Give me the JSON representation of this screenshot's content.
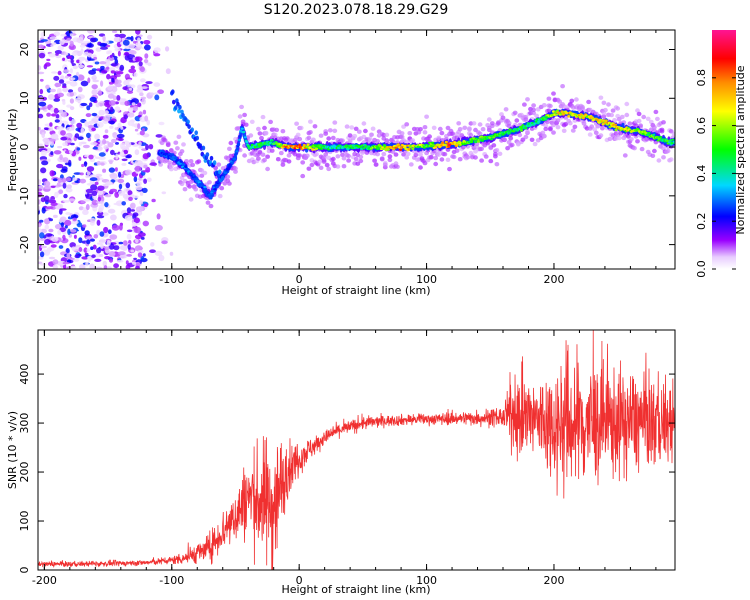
{
  "title": "S120.2023.078.18.29.G29",
  "chart_data": [
    {
      "type": "heatmap",
      "xlabel": "Height of straight line (km)",
      "ylabel": "Frequency (Hz)",
      "xlim": [
        -205,
        295
      ],
      "ylim": [
        -25,
        24
      ],
      "xticks": [
        -200,
        -100,
        0,
        100,
        200
      ],
      "yticks": [
        -20,
        -10,
        0,
        10,
        20
      ],
      "colorbar": {
        "label": "Normalized spectral amplitude",
        "range": [
          0,
          1
        ],
        "ticks": [
          0.0,
          0.2,
          0.4,
          0.6,
          0.8
        ],
        "colors": [
          "#ffffff",
          "#9a00ff",
          "#0000ff",
          "#00d8ff",
          "#00ff00",
          "#ffff00",
          "#ff8c00",
          "#ff0000",
          "#ff1493"
        ]
      },
      "ridge": {
        "x": [
          -110,
          -100,
          -90,
          -80,
          -70,
          -60,
          -50,
          -45,
          -40,
          -30,
          -20,
          -10,
          0,
          20,
          50,
          80,
          100,
          120,
          130,
          150,
          170,
          190,
          200,
          210,
          230,
          250,
          270,
          290
        ],
        "y": [
          -1,
          -2,
          -4,
          -7,
          -10,
          -6,
          -2,
          4,
          0,
          0.5,
          1,
          0,
          0,
          0,
          0,
          0,
          0.2,
          0.5,
          1,
          2,
          3.5,
          5.5,
          7,
          7,
          6,
          4,
          3,
          1
        ],
        "amp": [
          0.25,
          0.3,
          0.3,
          0.3,
          0.3,
          0.25,
          0.3,
          0.3,
          0.45,
          0.5,
          0.5,
          0.8,
          0.85,
          0.45,
          0.5,
          0.8,
          0.55,
          0.9,
          0.6,
          0.55,
          0.5,
          0.5,
          0.7,
          0.75,
          0.7,
          0.75,
          0.6,
          0.5
        ]
      }
    },
    {
      "type": "line",
      "xlabel": "Height of straight line (km)",
      "ylabel": "SNR (10 * v/v)",
      "xlim": [
        -205,
        295
      ],
      "ylim": [
        0,
        490
      ],
      "xticks": [
        -200,
        -100,
        0,
        100,
        200
      ],
      "yticks": [
        0,
        100,
        200,
        300,
        400
      ],
      "color": "#f03030",
      "series": [
        {
          "x": [
            -205,
            -180,
            -150,
            -120,
            -100,
            -90,
            -80,
            -70,
            -60,
            -50,
            -40,
            -30,
            -20,
            -10,
            0,
            10,
            20,
            30,
            40,
            50,
            70,
            100,
            130,
            160,
            170,
            180,
            200,
            210,
            230,
            250,
            270,
            295
          ],
          "y": [
            12,
            12,
            13,
            15,
            20,
            25,
            35,
            45,
            80,
            110,
            150,
            140,
            130,
            200,
            230,
            250,
            270,
            285,
            292,
            300,
            305,
            308,
            310,
            312,
            320,
            310,
            300,
            300,
            300,
            300,
            305,
            300
          ],
          "noise": [
            4,
            4,
            4,
            4,
            6,
            10,
            15,
            20,
            30,
            40,
            60,
            80,
            110,
            40,
            25,
            15,
            10,
            10,
            10,
            10,
            8,
            8,
            10,
            15,
            60,
            60,
            80,
            110,
            90,
            80,
            70,
            60
          ]
        }
      ]
    }
  ]
}
